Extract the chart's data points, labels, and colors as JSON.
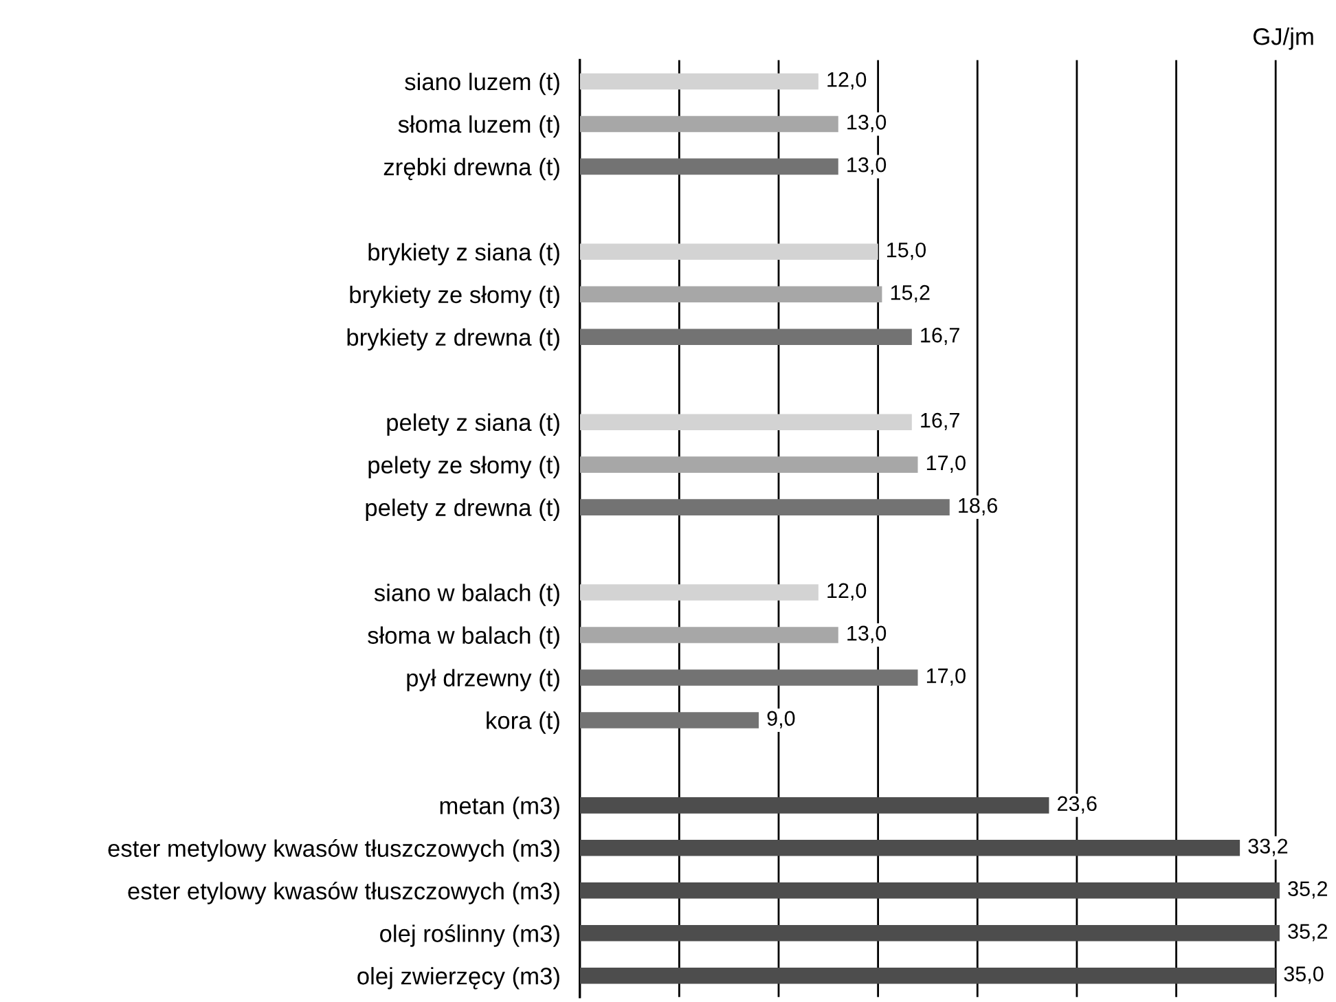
{
  "chart_data": {
    "type": "bar",
    "orientation": "horizontal",
    "xlabel": "GJ/jm",
    "categories": [
      "siano luzem (t)",
      "słoma luzem (t)",
      "zrębki drewna (t)",
      null,
      "brykiety z siana (t)",
      "brykiety ze słomy (t)",
      "brykiety z drewna (t)",
      null,
      "pelety z siana (t)",
      "pelety ze słomy (t)",
      "pelety z drewna (t)",
      null,
      "siano w balach (t)",
      "słoma w balach (t)",
      "pył drzewny (t)",
      "kora (t)",
      null,
      "metan (m3)",
      "ester metylowy kwasów tłuszczowych (m3)",
      "ester etylowy kwasów tłuszczowych (m3)",
      "olej roślinny (m3)",
      "olej zwierzęcy (m3)"
    ],
    "values": [
      12.0,
      13.0,
      13.0,
      null,
      15.0,
      15.2,
      16.7,
      null,
      16.7,
      17.0,
      18.6,
      null,
      12.0,
      13.0,
      17.0,
      9.0,
      null,
      23.6,
      33.2,
      35.2,
      35.2,
      35.0
    ],
    "value_labels": [
      "12,0",
      "13,0",
      "13,0",
      null,
      "15,0",
      "15,2",
      "16,7",
      null,
      "16,7",
      "17,0",
      "18,6",
      null,
      "12,0",
      "13,0",
      "17,0",
      "9,0",
      null,
      "23,6",
      "33,2",
      "35,2",
      "35,2",
      "35,0"
    ],
    "colors": [
      "#d3d3d3",
      "#a7a7a7",
      "#737373",
      null,
      "#d3d3d3",
      "#a7a7a7",
      "#737373",
      null,
      "#d3d3d3",
      "#a7a7a7",
      "#737373",
      null,
      "#d3d3d3",
      "#a7a7a7",
      "#737373",
      "#737373",
      null,
      "#4d4d4d",
      "#4d4d4d",
      "#4d4d4d",
      "#4d4d4d",
      "#4d4d4d"
    ],
    "xticks": [
      {
        "value": 5,
        "label": null
      },
      {
        "value": 10,
        "label": null
      },
      {
        "value": 15,
        "label": null
      },
      {
        "value": 20,
        "label": null
      },
      {
        "value": 25,
        "label": null
      },
      {
        "value": 30,
        "label": null
      },
      {
        "value": 35,
        "label": null
      }
    ],
    "grid": "x",
    "tick_labels": "y"
  }
}
